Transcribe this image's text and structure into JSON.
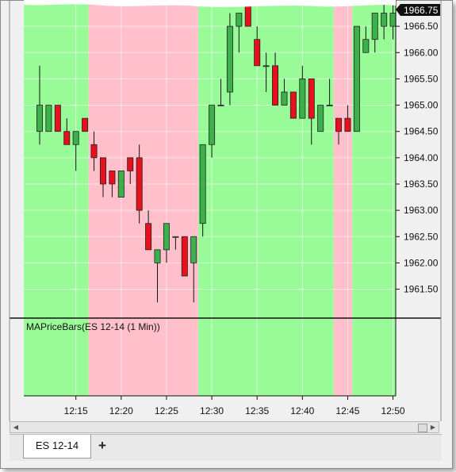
{
  "tabs": [
    {
      "label": "ES 12-14"
    }
  ],
  "add_tab_label": "+",
  "chart_data": {
    "type": "candlestick",
    "instrument": "ES 12-14",
    "interval": "1 Min",
    "indicator_label": "MAPriceBars(ES 12-14 (1 Min))",
    "last_price_label": "1966.75",
    "y_ticks": [
      1961.5,
      1962.0,
      1962.5,
      1963.0,
      1963.5,
      1964.0,
      1964.5,
      1965.0,
      1965.5,
      1966.0,
      1966.5
    ],
    "y_tick_labels": [
      "1961.50",
      "1962.00",
      "1962.50",
      "1963.00",
      "1963.50",
      "1964.00",
      "1964.50",
      "1965.00",
      "1965.50",
      "1966.00",
      "1966.50"
    ],
    "ylim": [
      1960.95,
      1967.0
    ],
    "x_tick_labels": [
      "12:15",
      "12:20",
      "12:25",
      "12:30",
      "12:35",
      "12:40",
      "12:45",
      "12:50"
    ],
    "x_tick_minutes": [
      15,
      20,
      25,
      30,
      35,
      40,
      45,
      50
    ],
    "x_range_minutes": [
      9.25,
      50.3
    ],
    "background_bands": [
      {
        "color": "green",
        "from": 9.25,
        "to": 16.4
      },
      {
        "color": "pink",
        "from": 16.4,
        "to": 28.5
      },
      {
        "color": "green",
        "from": 28.5,
        "to": 43.45
      },
      {
        "color": "pink",
        "from": 43.45,
        "to": 45.5
      },
      {
        "color": "green",
        "from": 45.5,
        "to": 50.3
      }
    ],
    "colors": {
      "up": "#3cb04b",
      "down": "#e8101c",
      "green_band": "#98fb98",
      "pink_band": "#ffc0cb"
    },
    "bars": [
      {
        "time": "12:11",
        "open": 1964.5,
        "high": 1965.75,
        "low": 1964.25,
        "close": 1965.0
      },
      {
        "time": "12:12",
        "open": 1964.5,
        "high": 1965.0,
        "low": 1964.5,
        "close": 1965.0
      },
      {
        "time": "12:13",
        "open": 1965.0,
        "high": 1965.0,
        "low": 1964.5,
        "close": 1964.5
      },
      {
        "time": "12:14",
        "open": 1964.5,
        "high": 1964.75,
        "low": 1964.25,
        "close": 1964.25
      },
      {
        "time": "12:15",
        "open": 1964.25,
        "high": 1964.5,
        "low": 1963.75,
        "close": 1964.5
      },
      {
        "time": "12:16",
        "open": 1964.75,
        "high": 1964.75,
        "low": 1964.5,
        "close": 1964.5
      },
      {
        "time": "12:17",
        "open": 1964.25,
        "high": 1964.5,
        "low": 1963.75,
        "close": 1964.0
      },
      {
        "time": "12:18",
        "open": 1964.0,
        "high": 1964.0,
        "low": 1963.25,
        "close": 1963.5
      },
      {
        "time": "12:19",
        "open": 1963.75,
        "high": 1963.75,
        "low": 1963.25,
        "close": 1963.5
      },
      {
        "time": "12:20",
        "open": 1963.25,
        "high": 1963.75,
        "low": 1963.25,
        "close": 1963.75
      },
      {
        "time": "12:21",
        "open": 1964.0,
        "high": 1964.0,
        "low": 1963.5,
        "close": 1963.75
      },
      {
        "time": "12:22",
        "open": 1964.0,
        "high": 1964.25,
        "low": 1962.75,
        "close": 1963.0
      },
      {
        "time": "12:23",
        "open": 1962.75,
        "high": 1963.0,
        "low": 1962.25,
        "close": 1962.25
      },
      {
        "time": "12:24",
        "open": 1962.0,
        "high": 1962.25,
        "low": 1961.25,
        "close": 1962.25
      },
      {
        "time": "12:25",
        "open": 1962.25,
        "high": 1962.75,
        "low": 1962.0,
        "close": 1962.75
      },
      {
        "time": "12:26",
        "open": 1962.5,
        "high": 1962.5,
        "low": 1962.25,
        "close": 1962.5
      },
      {
        "time": "12:27",
        "open": 1962.5,
        "high": 1962.5,
        "low": 1961.75,
        "close": 1961.75
      },
      {
        "time": "12:28",
        "open": 1962.0,
        "high": 1962.5,
        "low": 1961.25,
        "close": 1962.5
      },
      {
        "time": "12:29",
        "open": 1962.75,
        "high": 1964.25,
        "low": 1962.5,
        "close": 1964.25
      },
      {
        "time": "12:30",
        "open": 1964.25,
        "high": 1965.0,
        "low": 1964.0,
        "close": 1965.0
      },
      {
        "time": "12:31",
        "open": 1965.0,
        "high": 1965.5,
        "low": 1965.0,
        "close": 1965.0
      },
      {
        "time": "12:32",
        "open": 1965.25,
        "high": 1966.75,
        "low": 1965.0,
        "close": 1966.5
      },
      {
        "time": "12:33",
        "open": 1966.5,
        "high": 1966.75,
        "low": 1966.0,
        "close": 1966.75
      },
      {
        "time": "12:34",
        "open": 1967.0,
        "high": 1967.0,
        "low": 1966.5,
        "close": 1966.5
      },
      {
        "time": "12:35",
        "open": 1966.25,
        "high": 1966.5,
        "low": 1965.75,
        "close": 1965.75
      },
      {
        "time": "12:36",
        "open": 1965.75,
        "high": 1966.0,
        "low": 1965.25,
        "close": 1965.75
      },
      {
        "time": "12:37",
        "open": 1965.75,
        "high": 1966.0,
        "low": 1965.0,
        "close": 1965.0
      },
      {
        "time": "12:38",
        "open": 1965.0,
        "high": 1965.5,
        "low": 1965.0,
        "close": 1965.25
      },
      {
        "time": "12:39",
        "open": 1965.25,
        "high": 1965.25,
        "low": 1964.75,
        "close": 1964.75
      },
      {
        "time": "12:40",
        "open": 1964.75,
        "high": 1965.75,
        "low": 1964.75,
        "close": 1965.5
      },
      {
        "time": "12:41",
        "open": 1965.5,
        "high": 1965.5,
        "low": 1964.25,
        "close": 1964.75
      },
      {
        "time": "12:42",
        "open": 1964.5,
        "high": 1965.0,
        "low": 1964.5,
        "close": 1965.0
      },
      {
        "time": "12:43",
        "open": 1965.0,
        "high": 1965.5,
        "low": 1965.0,
        "close": 1965.0
      },
      {
        "time": "12:44",
        "open": 1964.75,
        "high": 1964.75,
        "low": 1964.25,
        "close": 1964.5
      },
      {
        "time": "12:45",
        "open": 1964.75,
        "high": 1965.0,
        "low": 1964.5,
        "close": 1964.5
      },
      {
        "time": "12:46",
        "open": 1964.5,
        "high": 1966.5,
        "low": 1964.5,
        "close": 1966.5
      },
      {
        "time": "12:47",
        "open": 1966.0,
        "high": 1966.5,
        "low": 1966.0,
        "close": 1966.25
      },
      {
        "time": "12:48",
        "open": 1966.25,
        "high": 1966.75,
        "low": 1966.0,
        "close": 1966.75
      },
      {
        "time": "12:49",
        "open": 1966.5,
        "high": 1967.0,
        "low": 1966.25,
        "close": 1966.75
      },
      {
        "time": "12:50",
        "open": 1966.5,
        "high": 1967.0,
        "low": 1966.25,
        "close": 1966.75
      }
    ]
  }
}
